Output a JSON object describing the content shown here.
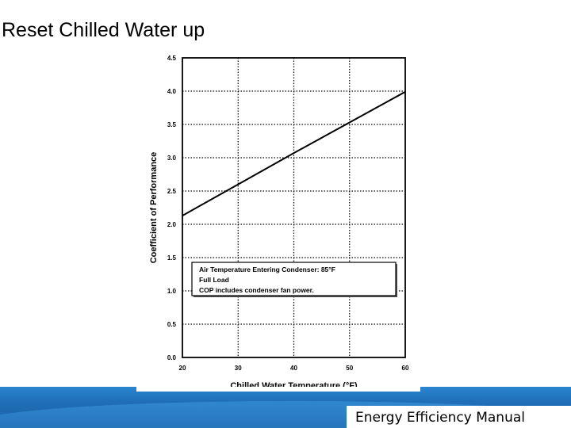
{
  "slide": {
    "title": "Reset Chilled Water up",
    "footer": "Energy Efficiency Manual"
  },
  "chart_data": {
    "type": "line",
    "xlabel": "Chilled Water Temperature (°F)",
    "ylabel": "Coefficient of Performance",
    "xlim": [
      20,
      60
    ],
    "ylim": [
      0.0,
      4.5
    ],
    "x_ticks": [
      "20",
      "30",
      "40",
      "50",
      "60"
    ],
    "y_ticks": [
      "0.0",
      "0.5",
      "1.0",
      "1.5",
      "2.0",
      "2.5",
      "3.0",
      "3.5",
      "4.0",
      "4.5"
    ],
    "grid": true,
    "series": [
      {
        "x": [
          20,
          30,
          40,
          50,
          60
        ],
        "y": [
          2.13,
          2.6,
          3.07,
          3.53,
          3.99
        ]
      }
    ],
    "legend_box": {
      "placement": "lower-center",
      "lines": [
        "Air Temperature Entering Condenser: 85°F",
        "Full Load",
        "COP includes condenser fan power."
      ]
    },
    "colors": {
      "line": "#000000",
      "grid": "#000000",
      "footer": "#1f6fb7"
    }
  }
}
